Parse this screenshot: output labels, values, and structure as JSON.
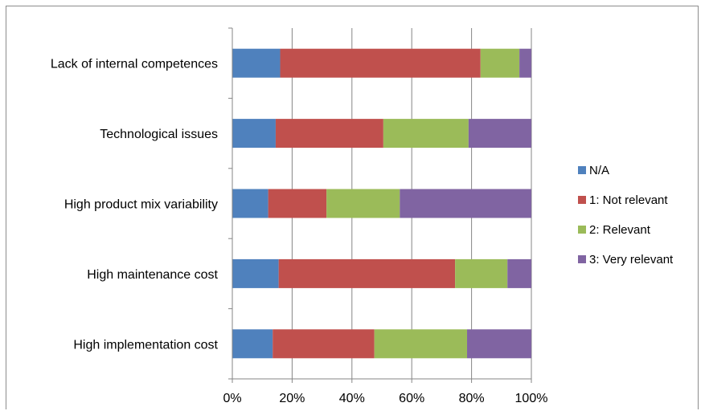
{
  "chart_data": {
    "type": "bar",
    "orientation": "horizontal",
    "stacked": "100%",
    "categories": [
      "Lack of internal competences",
      "Technological issues",
      "High product mix variability",
      "High maintenance cost",
      "High implementation cost"
    ],
    "series": [
      {
        "name": "N/A",
        "color": "#4f81bd",
        "values": [
          16,
          14.5,
          12,
          15.5,
          13.5
        ]
      },
      {
        "name": "1: Not relevant",
        "color": "#c0504d",
        "values": [
          67,
          36,
          19.5,
          59,
          34
        ]
      },
      {
        "name": "2: Relevant",
        "color": "#9bbb59",
        "values": [
          13,
          28.5,
          24.5,
          17.5,
          31
        ]
      },
      {
        "name": "3: Very relevant",
        "color": "#8064a2",
        "values": [
          4,
          21,
          44,
          8,
          21.5
        ]
      }
    ],
    "xlim": [
      0,
      100
    ],
    "x_ticks": [
      "0%",
      "20%",
      "40%",
      "60%",
      "80%",
      "100%"
    ],
    "grid": "vertical",
    "legend_position": "right"
  }
}
